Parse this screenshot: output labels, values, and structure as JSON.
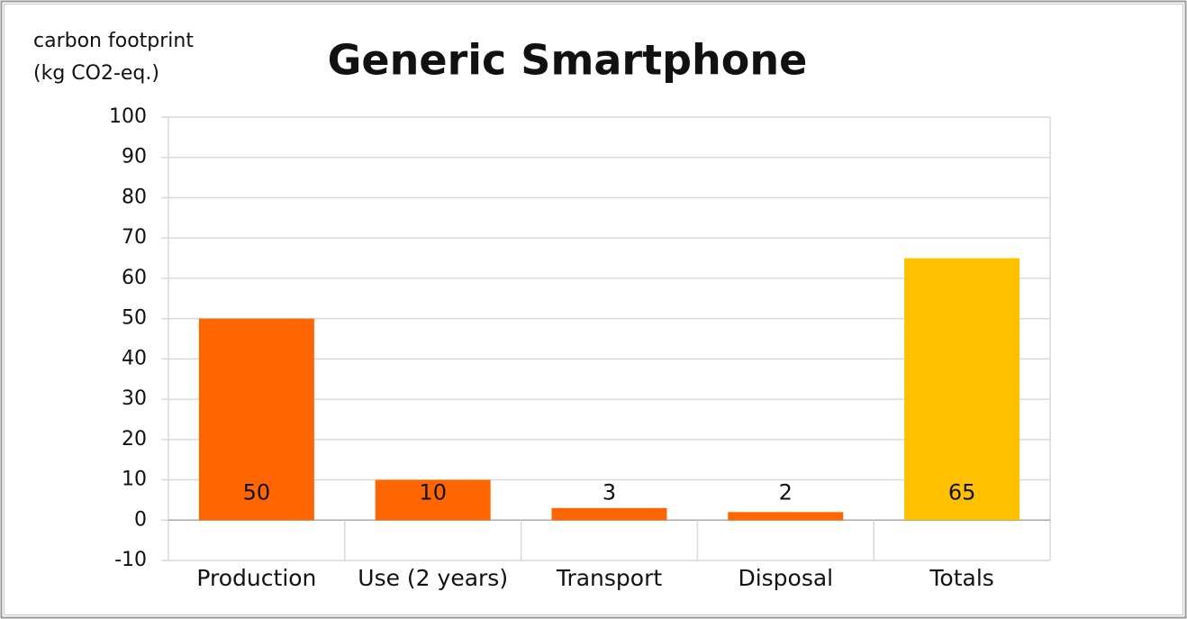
{
  "chart_data": {
    "type": "bar",
    "title": "Generic Smartphone",
    "y_label": [
      "carbon footprint",
      "(kg CO2-eq.)"
    ],
    "categories": [
      "Production",
      "Use (2 years)",
      "Transport",
      "Disposal",
      "Totals"
    ],
    "values": [
      50,
      10,
      3,
      2,
      65
    ],
    "colors": [
      "#ff6600",
      "#ff6600",
      "#ff6600",
      "#ff6600",
      "#ffc000"
    ],
    "ylim": [
      -10,
      100
    ],
    "yticks": [
      -10,
      0,
      10,
      20,
      30,
      40,
      50,
      60,
      70,
      80,
      90,
      100
    ],
    "grid": true
  }
}
